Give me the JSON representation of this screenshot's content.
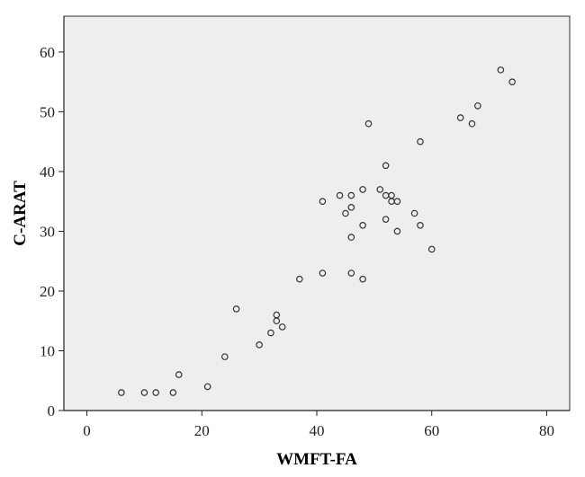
{
  "chart_data": {
    "type": "scatter",
    "title": "",
    "xlabel": "WMFT-FA",
    "ylabel": "C-ARAT",
    "xlim": [
      -4,
      84
    ],
    "ylim": [
      0,
      66
    ],
    "xticks": [
      0,
      20,
      40,
      60,
      80
    ],
    "yticks": [
      0,
      10,
      20,
      30,
      40,
      50,
      60
    ],
    "xtick_labels": [
      "0",
      "20",
      "40",
      "60",
      "80"
    ],
    "ytick_labels": [
      "0",
      "10",
      "20",
      "30",
      "40",
      "50",
      "60"
    ],
    "grid": false,
    "plot_background": "#eeeeee",
    "marker_color": "#333333",
    "series": [
      {
        "points": [
          [
            6,
            3
          ],
          [
            10,
            3
          ],
          [
            12,
            3
          ],
          [
            15,
            3
          ],
          [
            16,
            6
          ],
          [
            21,
            4
          ],
          [
            24,
            9
          ],
          [
            26,
            17
          ],
          [
            30,
            11
          ],
          [
            32,
            13
          ],
          [
            33,
            16
          ],
          [
            33,
            15
          ],
          [
            34,
            14
          ],
          [
            37,
            22
          ],
          [
            41,
            35
          ],
          [
            41,
            23
          ],
          [
            44,
            36
          ],
          [
            45,
            33
          ],
          [
            46,
            36
          ],
          [
            46,
            34
          ],
          [
            46,
            29
          ],
          [
            46,
            23
          ],
          [
            48,
            37
          ],
          [
            48,
            31
          ],
          [
            48,
            22
          ],
          [
            49,
            48
          ],
          [
            51,
            37
          ],
          [
            52,
            41
          ],
          [
            52,
            36
          ],
          [
            52,
            32
          ],
          [
            53,
            36
          ],
          [
            53,
            35
          ],
          [
            54,
            35
          ],
          [
            54,
            30
          ],
          [
            57,
            33
          ],
          [
            58,
            45
          ],
          [
            58,
            31
          ],
          [
            60,
            27
          ],
          [
            65,
            49
          ],
          [
            67,
            48
          ],
          [
            68,
            51
          ],
          [
            72,
            57
          ],
          [
            74,
            55
          ]
        ]
      }
    ]
  }
}
